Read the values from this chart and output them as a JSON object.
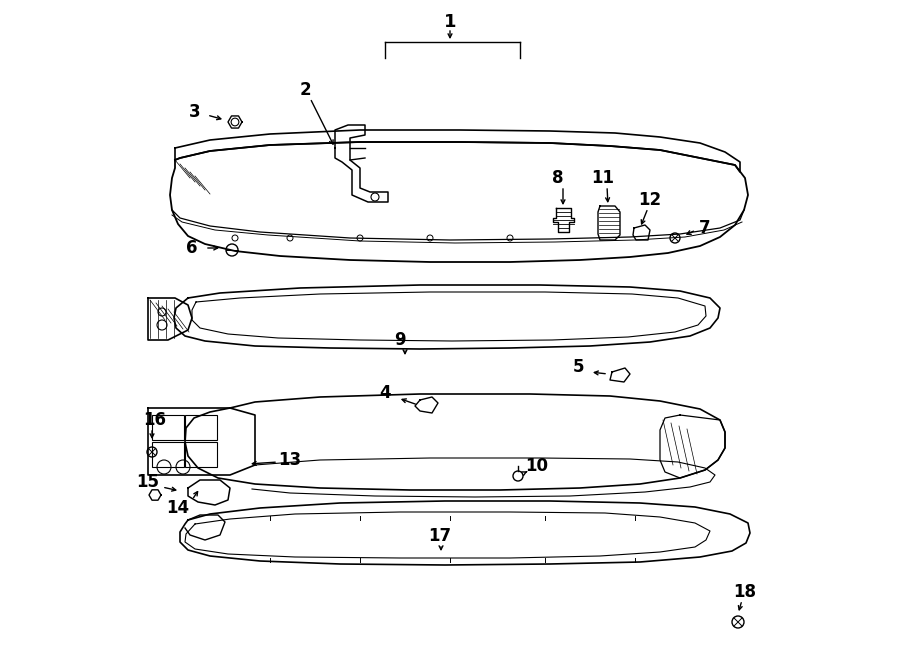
{
  "bg_color": "#ffffff",
  "line_color": "#000000",
  "lw": 1.0,
  "fig_w": 9.0,
  "fig_h": 6.61,
  "dpi": 100
}
